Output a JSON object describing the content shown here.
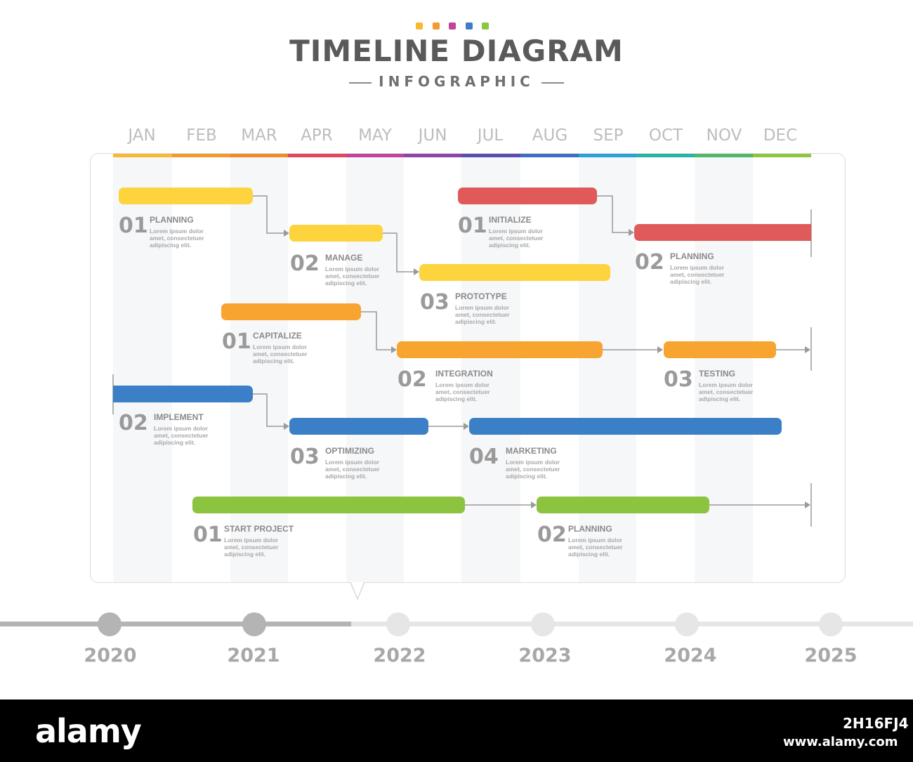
{
  "header": {
    "title": "TIMELINE DIAGRAM",
    "subtitle": "INFOGRAPHIC",
    "dot_colors": [
      "#f7b92f",
      "#f39a2f",
      "#c2439a",
      "#3c7dc4",
      "#8dc63f"
    ]
  },
  "months": [
    {
      "label": "JAN",
      "color": "#f7b92f"
    },
    {
      "label": "FEB",
      "color": "#f39a2f"
    },
    {
      "label": "MAR",
      "color": "#f08a2a"
    },
    {
      "label": "APR",
      "color": "#e2475a"
    },
    {
      "label": "MAY",
      "color": "#c2439a"
    },
    {
      "label": "JUN",
      "color": "#8b46a8"
    },
    {
      "label": "JUL",
      "color": "#5a4fb0"
    },
    {
      "label": "AUG",
      "color": "#3c6fc4"
    },
    {
      "label": "SEP",
      "color": "#2aa0d8"
    },
    {
      "label": "OCT",
      "color": "#27b3a6"
    },
    {
      "label": "NOV",
      "color": "#4fb86a"
    },
    {
      "label": "DEC",
      "color": "#8dc63f"
    }
  ],
  "tasks": [
    {
      "num": "01",
      "title": "PLANNING",
      "desc": "Lorem ipsum dolor amet, consectetuer adipiscing elit.",
      "color": "#fdd33e"
    },
    {
      "num": "02",
      "title": "MANAGE",
      "desc": "Lorem ipsum dolor amet, consectetuer adipiscing elit.",
      "color": "#fdd33e"
    },
    {
      "num": "03",
      "title": "PROTOTYPE",
      "desc": "Lorem ipsum dolor amet, consectetuer adipiscing elit.",
      "color": "#fdd33e"
    },
    {
      "num": "01",
      "title": "INITIALIZE",
      "desc": "Lorem ipsum dolor amet, consectetuer adipiscing elit.",
      "color": "#e05a5a"
    },
    {
      "num": "02",
      "title": "PLANNING",
      "desc": "Lorem ipsum dolor amet, consectetuer adipiscing elit.",
      "color": "#e05a5a"
    },
    {
      "num": "01",
      "title": "CAPITALIZE",
      "desc": "Lorem ipsum dolor amet, consectetuer adipiscing elit.",
      "color": "#f8a431"
    },
    {
      "num": "02",
      "title": "INTEGRATION",
      "desc": "Lorem ipsum dolor amet, consectetuer adipiscing elit.",
      "color": "#f8a431"
    },
    {
      "num": "03",
      "title": "TESTING",
      "desc": "Lorem ipsum dolor amet, consectetuer adipiscing elit.",
      "color": "#f8a431"
    },
    {
      "num": "02",
      "title": "IMPLEMENT",
      "desc": "Lorem ipsum dolor amet, consectetuer adipiscing elit.",
      "color": "#3b7fc6"
    },
    {
      "num": "03",
      "title": "OPTIMIZING",
      "desc": "Lorem ipsum dolor amet, consectetuer adipiscing elit.",
      "color": "#3b7fc6"
    },
    {
      "num": "04",
      "title": "MARKETING",
      "desc": "Lorem ipsum dolor amet, consectetuer adipiscing elit.",
      "color": "#3b7fc6"
    },
    {
      "num": "01",
      "title": "START PROJECT",
      "desc": "Lorem ipsum dolor amet, consectetuer adipiscing elit.",
      "color": "#8cc43f"
    },
    {
      "num": "02",
      "title": "PLANNING",
      "desc": "Lorem ipsum dolor amet, consectetuer adipiscing elit.",
      "color": "#8cc43f"
    }
  ],
  "years": [
    "2020",
    "2021",
    "2022",
    "2023",
    "2024",
    "2025"
  ],
  "year_progress_color": "#b4b4b4",
  "year_future_color": "#e6e6e6",
  "footer": {
    "brand": "alamy",
    "image_id": "2H16FJ4",
    "site": "www.alamy.com"
  }
}
